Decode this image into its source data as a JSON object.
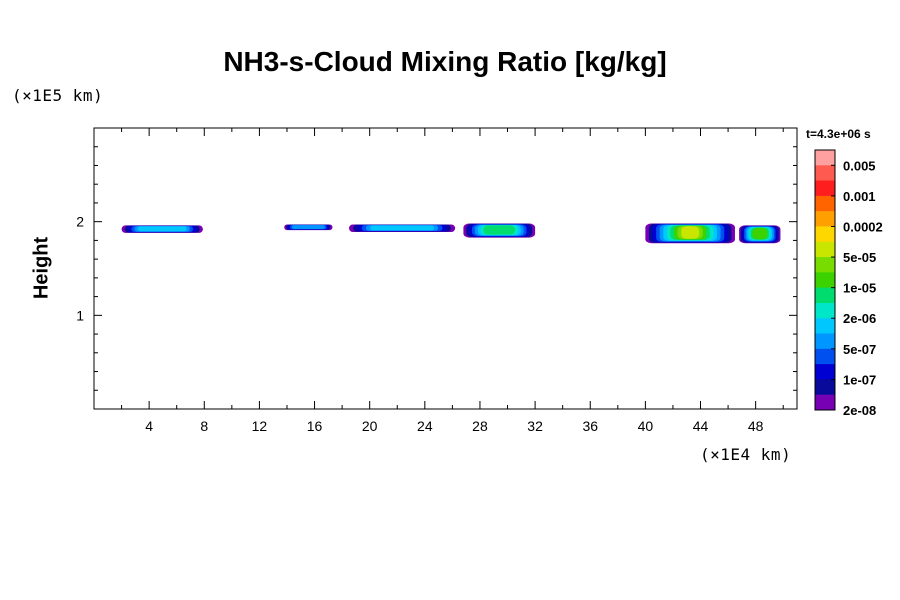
{
  "chart_data": {
    "type": "heatmap",
    "title": "NH3-s-Cloud Mixing Ratio [kg/kg]",
    "ylabel": "Height",
    "y_unit": "(×1E5 km)",
    "x_unit": "(×1E4 km)",
    "time_label": "t=4.3e+06 s",
    "xlim": [
      0,
      51
    ],
    "ylim": [
      0,
      3
    ],
    "x_ticks": [
      4,
      8,
      12,
      16,
      20,
      24,
      28,
      32,
      36,
      40,
      44,
      48
    ],
    "y_ticks": [
      1,
      2
    ],
    "colorbar": {
      "labels": [
        "0.005",
        "0.001",
        "0.0002",
        "5e-05",
        "1e-05",
        "2e-06",
        "5e-07",
        "1e-07",
        "2e-08"
      ],
      "colors": [
        "#ffa0a0",
        "#ff5a50",
        "#ff1e1e",
        "#ff6400",
        "#ffa000",
        "#ffd700",
        "#c8e600",
        "#78dc00",
        "#3cd200",
        "#00dc6e",
        "#00e6c8",
        "#00c8ff",
        "#0096ff",
        "#0050f0",
        "#0000d2",
        "#0a0a9a",
        "#7800b4"
      ]
    },
    "cloud_regions": [
      {
        "x_start": 2.0,
        "x_end": 7.9,
        "y_top": 1.96,
        "y_bottom": 1.88,
        "max_level": 11
      },
      {
        "x_start": 13.8,
        "x_end": 17.3,
        "y_top": 1.97,
        "y_bottom": 1.91,
        "max_level": 12
      },
      {
        "x_start": 18.5,
        "x_end": 26.2,
        "y_top": 1.97,
        "y_bottom": 1.89,
        "max_level": 11
      },
      {
        "x_start": 26.8,
        "x_end": 32.0,
        "y_top": 1.98,
        "y_bottom": 1.83,
        "max_level": 9
      },
      {
        "x_start": 40.0,
        "x_end": 46.5,
        "y_top": 1.98,
        "y_bottom": 1.77,
        "max_level": 6
      },
      {
        "x_start": 46.8,
        "x_end": 49.8,
        "y_top": 1.96,
        "y_bottom": 1.77,
        "max_level": 8
      }
    ]
  }
}
